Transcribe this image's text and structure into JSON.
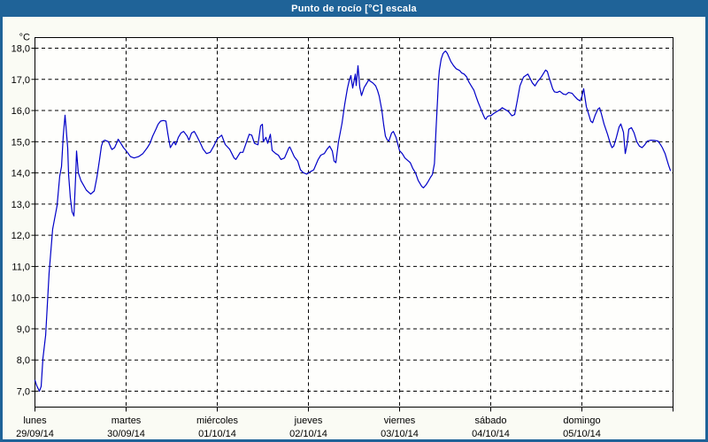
{
  "window": {
    "title": "Punto de rocío [°C] escala"
  },
  "colors": {
    "titlebar": "#1f6398",
    "border": "#1f6398",
    "content_background": "#fafbf4",
    "plot_background": "#fefefc",
    "line": "#0101c8",
    "grid": "#000000",
    "text": "#000000",
    "title_text": "#ffffff"
  },
  "chart_data": {
    "type": "line",
    "title": "Punto de rocío [°C] escala",
    "xlabel": "",
    "ylabel": "°C",
    "y_unit_label": "°C",
    "grid": "dashed",
    "legend_position": "none",
    "ylim": [
      6.49,
      18.34
    ],
    "xlim_days": [
      0,
      7
    ],
    "yticks": [
      {
        "value": 7,
        "label": "7,0"
      },
      {
        "value": 8,
        "label": "8,0"
      },
      {
        "value": 9,
        "label": "9,0"
      },
      {
        "value": 10,
        "label": "10,0"
      },
      {
        "value": 11,
        "label": "11,0"
      },
      {
        "value": 12,
        "label": "12,0"
      },
      {
        "value": 13,
        "label": "13,0"
      },
      {
        "value": 14,
        "label": "14,0"
      },
      {
        "value": 15,
        "label": "15,0"
      },
      {
        "value": 16,
        "label": "16,0"
      },
      {
        "value": 17,
        "label": "17,0"
      },
      {
        "value": 18,
        "label": "18,0"
      }
    ],
    "x_categories": [
      {
        "day": "lunes",
        "date": "29/09/14"
      },
      {
        "day": "martes",
        "date": "30/09/14"
      },
      {
        "day": "miércoles",
        "date": "01/10/14"
      },
      {
        "day": "jueves",
        "date": "02/10/14"
      },
      {
        "day": "viernes",
        "date": "03/10/14"
      },
      {
        "day": "sábado",
        "date": "04/10/14"
      },
      {
        "day": "domingo",
        "date": "05/10/14"
      }
    ],
    "series": [
      {
        "name": "Punto de rocío [°C]",
        "points": [
          [
            0.0,
            7.35
          ],
          [
            0.019,
            7.18
          ],
          [
            0.049,
            7.0
          ],
          [
            0.068,
            7.15
          ],
          [
            0.087,
            8.05
          ],
          [
            0.117,
            8.8
          ],
          [
            0.155,
            10.8
          ],
          [
            0.194,
            12.2
          ],
          [
            0.243,
            12.95
          ],
          [
            0.272,
            13.9
          ],
          [
            0.291,
            14.2
          ],
          [
            0.311,
            15.2
          ],
          [
            0.33,
            15.85
          ],
          [
            0.359,
            14.8
          ],
          [
            0.369,
            13.95
          ],
          [
            0.388,
            13.2
          ],
          [
            0.408,
            12.75
          ],
          [
            0.427,
            12.62
          ],
          [
            0.447,
            13.9
          ],
          [
            0.456,
            14.7
          ],
          [
            0.476,
            14.0
          ],
          [
            0.505,
            13.75
          ],
          [
            0.534,
            13.6
          ],
          [
            0.563,
            13.45
          ],
          [
            0.612,
            13.32
          ],
          [
            0.65,
            13.42
          ],
          [
            0.68,
            13.86
          ],
          [
            0.709,
            14.43
          ],
          [
            0.729,
            14.86
          ],
          [
            0.748,
            15.02
          ],
          [
            0.767,
            15.05
          ],
          [
            0.806,
            15.0
          ],
          [
            0.835,
            14.8
          ],
          [
            0.845,
            14.75
          ],
          [
            0.874,
            14.81
          ],
          [
            0.903,
            15.0
          ],
          [
            0.913,
            15.08
          ],
          [
            0.942,
            14.95
          ],
          [
            0.971,
            14.81
          ],
          [
            1.0,
            14.71
          ],
          [
            1.049,
            14.52
          ],
          [
            1.087,
            14.48
          ],
          [
            1.136,
            14.52
          ],
          [
            1.184,
            14.62
          ],
          [
            1.233,
            14.81
          ],
          [
            1.262,
            14.95
          ],
          [
            1.291,
            15.18
          ],
          [
            1.33,
            15.42
          ],
          [
            1.35,
            15.56
          ],
          [
            1.379,
            15.66
          ],
          [
            1.408,
            15.68
          ],
          [
            1.437,
            15.66
          ],
          [
            1.456,
            15.28
          ],
          [
            1.476,
            14.95
          ],
          [
            1.485,
            14.81
          ],
          [
            1.524,
            15.0
          ],
          [
            1.544,
            14.9
          ],
          [
            1.573,
            15.14
          ],
          [
            1.602,
            15.28
          ],
          [
            1.631,
            15.33
          ],
          [
            1.67,
            15.18
          ],
          [
            1.689,
            15.05
          ],
          [
            1.718,
            15.28
          ],
          [
            1.748,
            15.33
          ],
          [
            1.777,
            15.18
          ],
          [
            1.816,
            14.95
          ],
          [
            1.845,
            14.76
          ],
          [
            1.883,
            14.62
          ],
          [
            1.922,
            14.66
          ],
          [
            1.961,
            14.86
          ],
          [
            2.0,
            15.09
          ],
          [
            2.049,
            15.21
          ],
          [
            2.087,
            14.91
          ],
          [
            2.136,
            14.76
          ],
          [
            2.184,
            14.48
          ],
          [
            2.204,
            14.43
          ],
          [
            2.252,
            14.66
          ],
          [
            2.282,
            14.66
          ],
          [
            2.35,
            15.24
          ],
          [
            2.379,
            15.21
          ],
          [
            2.408,
            14.95
          ],
          [
            2.447,
            14.9
          ],
          [
            2.476,
            15.51
          ],
          [
            2.495,
            15.56
          ],
          [
            2.505,
            15.0
          ],
          [
            2.534,
            15.14
          ],
          [
            2.553,
            14.95
          ],
          [
            2.583,
            15.24
          ],
          [
            2.602,
            14.72
          ],
          [
            2.641,
            14.62
          ],
          [
            2.67,
            14.57
          ],
          [
            2.699,
            14.43
          ],
          [
            2.738,
            14.48
          ],
          [
            2.786,
            14.81
          ],
          [
            2.796,
            14.83
          ],
          [
            2.845,
            14.52
          ],
          [
            2.883,
            14.38
          ],
          [
            2.913,
            14.1
          ],
          [
            2.942,
            14.01
          ],
          [
            2.981,
            13.96
          ],
          [
            3.0,
            14.0
          ],
          [
            3.029,
            14.05
          ],
          [
            3.058,
            14.1
          ],
          [
            3.107,
            14.43
          ],
          [
            3.136,
            14.57
          ],
          [
            3.175,
            14.62
          ],
          [
            3.204,
            14.76
          ],
          [
            3.233,
            14.86
          ],
          [
            3.262,
            14.7
          ],
          [
            3.282,
            14.38
          ],
          [
            3.301,
            14.33
          ],
          [
            3.33,
            15.0
          ],
          [
            3.369,
            15.6
          ],
          [
            3.398,
            16.2
          ],
          [
            3.427,
            16.7
          ],
          [
            3.447,
            16.95
          ],
          [
            3.466,
            17.12
          ],
          [
            3.485,
            16.72
          ],
          [
            3.515,
            17.17
          ],
          [
            3.524,
            16.8
          ],
          [
            3.544,
            17.44
          ],
          [
            3.563,
            16.75
          ],
          [
            3.583,
            16.48
          ],
          [
            3.612,
            16.74
          ],
          [
            3.641,
            16.88
          ],
          [
            3.66,
            16.98
          ],
          [
            3.709,
            16.88
          ],
          [
            3.738,
            16.79
          ],
          [
            3.757,
            16.65
          ],
          [
            3.777,
            16.46
          ],
          [
            3.806,
            16.0
          ],
          [
            3.825,
            15.55
          ],
          [
            3.845,
            15.18
          ],
          [
            3.864,
            15.06
          ],
          [
            3.883,
            15.02
          ],
          [
            3.913,
            15.28
          ],
          [
            3.932,
            15.33
          ],
          [
            3.961,
            15.14
          ],
          [
            4.0,
            14.71
          ],
          [
            4.029,
            14.62
          ],
          [
            4.058,
            14.48
          ],
          [
            4.097,
            14.38
          ],
          [
            4.117,
            14.33
          ],
          [
            4.146,
            14.14
          ],
          [
            4.175,
            14.0
          ],
          [
            4.204,
            13.76
          ],
          [
            4.243,
            13.57
          ],
          [
            4.262,
            13.52
          ],
          [
            4.291,
            13.62
          ],
          [
            4.311,
            13.71
          ],
          [
            4.34,
            13.86
          ],
          [
            4.36,
            13.95
          ],
          [
            4.383,
            14.3
          ],
          [
            4.4,
            15.4
          ],
          [
            4.417,
            16.4
          ],
          [
            4.427,
            16.98
          ],
          [
            4.437,
            17.3
          ],
          [
            4.456,
            17.65
          ],
          [
            4.476,
            17.82
          ],
          [
            4.495,
            17.89
          ],
          [
            4.505,
            17.91
          ],
          [
            4.524,
            17.83
          ],
          [
            4.544,
            17.7
          ],
          [
            4.563,
            17.57
          ],
          [
            4.592,
            17.44
          ],
          [
            4.621,
            17.34
          ],
          [
            4.641,
            17.31
          ],
          [
            4.66,
            17.28
          ],
          [
            4.68,
            17.21
          ],
          [
            4.709,
            17.17
          ],
          [
            4.738,
            17.07
          ],
          [
            4.757,
            16.93
          ],
          [
            4.786,
            16.79
          ],
          [
            4.816,
            16.65
          ],
          [
            4.838,
            16.46
          ],
          [
            4.861,
            16.27
          ],
          [
            4.887,
            16.08
          ],
          [
            4.913,
            15.9
          ],
          [
            4.935,
            15.75
          ],
          [
            4.947,
            15.72
          ],
          [
            4.961,
            15.8
          ],
          [
            4.981,
            15.83
          ],
          [
            5.0,
            15.83
          ],
          [
            5.029,
            15.9
          ],
          [
            5.068,
            15.97
          ],
          [
            5.097,
            16.02
          ],
          [
            5.126,
            16.09
          ],
          [
            5.165,
            16.02
          ],
          [
            5.194,
            15.97
          ],
          [
            5.233,
            15.83
          ],
          [
            5.262,
            15.87
          ],
          [
            5.291,
            16.32
          ],
          [
            5.32,
            16.79
          ],
          [
            5.359,
            17.07
          ],
          [
            5.408,
            17.17
          ],
          [
            5.456,
            16.89
          ],
          [
            5.485,
            16.79
          ],
          [
            5.515,
            16.93
          ],
          [
            5.553,
            17.07
          ],
          [
            5.602,
            17.3
          ],
          [
            5.621,
            17.25
          ],
          [
            5.641,
            17.05
          ],
          [
            5.66,
            16.88
          ],
          [
            5.68,
            16.7
          ],
          [
            5.699,
            16.6
          ],
          [
            5.728,
            16.58
          ],
          [
            5.757,
            16.62
          ],
          [
            5.796,
            16.53
          ],
          [
            5.825,
            16.51
          ],
          [
            5.854,
            16.58
          ],
          [
            5.893,
            16.55
          ],
          [
            5.922,
            16.45
          ],
          [
            5.951,
            16.36
          ],
          [
            5.981,
            16.31
          ],
          [
            6.0,
            16.45
          ],
          [
            6.019,
            16.7
          ],
          [
            6.049,
            16.13
          ],
          [
            6.078,
            15.85
          ],
          [
            6.097,
            15.66
          ],
          [
            6.117,
            15.61
          ],
          [
            6.146,
            15.85
          ],
          [
            6.175,
            16.04
          ],
          [
            6.194,
            16.09
          ],
          [
            6.214,
            15.9
          ],
          [
            6.243,
            15.57
          ],
          [
            6.282,
            15.24
          ],
          [
            6.311,
            14.95
          ],
          [
            6.33,
            14.81
          ],
          [
            6.35,
            14.86
          ],
          [
            6.379,
            15.14
          ],
          [
            6.408,
            15.47
          ],
          [
            6.427,
            15.57
          ],
          [
            6.456,
            15.3
          ],
          [
            6.476,
            14.62
          ],
          [
            6.495,
            14.9
          ],
          [
            6.515,
            15.4
          ],
          [
            6.544,
            15.45
          ],
          [
            6.573,
            15.28
          ],
          [
            6.602,
            15.0
          ],
          [
            6.631,
            14.86
          ],
          [
            6.66,
            14.81
          ],
          [
            6.689,
            14.9
          ],
          [
            6.718,
            15.02
          ],
          [
            6.757,
            15.05
          ],
          [
            6.796,
            15.04
          ],
          [
            6.835,
            15.02
          ],
          [
            6.864,
            14.9
          ],
          [
            6.883,
            14.81
          ],
          [
            6.913,
            14.62
          ],
          [
            6.932,
            14.43
          ],
          [
            6.951,
            14.24
          ],
          [
            6.971,
            14.08
          ]
        ]
      }
    ]
  }
}
